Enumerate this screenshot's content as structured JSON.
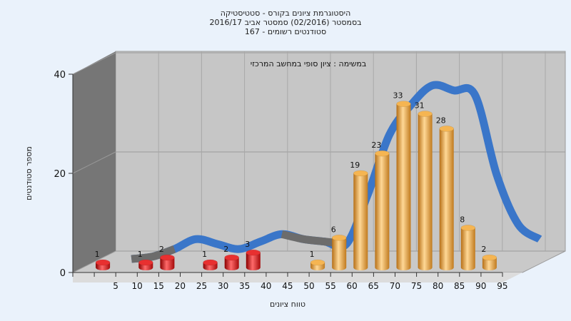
{
  "chart_data": {
    "type": "bar",
    "title_lines": [
      "היסטוגרמת ציונים בקורס - סטטיסטיקה",
      "בסמסטר  (02/2016)  סמסטר אביב 2016/17",
      "167 - סטודנטים רשומים"
    ],
    "annotation": "במשימה : ציון סופי במחשב המרכזי",
    "xlabel": "טווח ציונים",
    "ylabel": "מספר סטודנטים",
    "ylim": [
      0,
      40
    ],
    "y_ticks": [
      "0",
      "20",
      "40"
    ],
    "x_ticks": [
      "5",
      "10",
      "15",
      "20",
      "25",
      "30",
      "35",
      "40",
      "45",
      "50",
      "55",
      "60",
      "65",
      "70",
      "75",
      "80",
      "85",
      "90",
      "95"
    ],
    "bars": [
      {
        "x": 5,
        "value": 1,
        "label": "1",
        "group": "fail"
      },
      {
        "x": 15,
        "value": 1,
        "label": "1",
        "group": "fail"
      },
      {
        "x": 20,
        "value": 2,
        "label": "2",
        "group": "fail"
      },
      {
        "x": 30,
        "value": 1,
        "label": "1",
        "group": "fail"
      },
      {
        "x": 35,
        "value": 2,
        "label": "2",
        "group": "fail"
      },
      {
        "x": 40,
        "value": 3,
        "label": "3",
        "group": "fail"
      },
      {
        "x": 55,
        "value": 1,
        "label": "1",
        "group": "pass"
      },
      {
        "x": 60,
        "value": 6,
        "label": "6",
        "group": "pass"
      },
      {
        "x": 65,
        "value": 19,
        "label": "19",
        "group": "pass"
      },
      {
        "x": 70,
        "value": 23,
        "label": "23",
        "group": "pass"
      },
      {
        "x": 75,
        "value": 33,
        "label": "33",
        "group": "pass"
      },
      {
        "x": 80,
        "value": 31,
        "label": "31",
        "group": "pass"
      },
      {
        "x": 85,
        "value": 28,
        "label": "28",
        "group": "pass"
      },
      {
        "x": 90,
        "value": 8,
        "label": "8",
        "group": "pass"
      },
      {
        "x": 95,
        "value": 2,
        "label": "2",
        "group": "pass"
      }
    ],
    "curve": [
      {
        "x": 10,
        "y": 1
      },
      {
        "x": 15,
        "y": 1.5
      },
      {
        "x": 20,
        "y": 3
      },
      {
        "x": 25,
        "y": 5
      },
      {
        "x": 30,
        "y": 4
      },
      {
        "x": 35,
        "y": 3
      },
      {
        "x": 40,
        "y": 4.5
      },
      {
        "x": 45,
        "y": 6
      },
      {
        "x": 50,
        "y": 5
      },
      {
        "x": 55,
        "y": 4.5
      },
      {
        "x": 60,
        "y": 4
      },
      {
        "x": 65,
        "y": 14
      },
      {
        "x": 70,
        "y": 26
      },
      {
        "x": 75,
        "y": 32
      },
      {
        "x": 80,
        "y": 36
      },
      {
        "x": 85,
        "y": 35
      },
      {
        "x": 90,
        "y": 34
      },
      {
        "x": 95,
        "y": 18
      },
      {
        "x": 100,
        "y": 8
      },
      {
        "x": 105,
        "y": 5
      }
    ],
    "grid": true,
    "colors": {
      "fail": "#dd1a1a",
      "pass": "#f0a83c",
      "curve_blue": "#3a76c9",
      "curve_gray": "#6c6c6c",
      "plot_bg": "#c6c6c6",
      "left_wall": "#767676",
      "floor": "#c9c9c9",
      "page_bg": "#eaf2fb"
    }
  }
}
